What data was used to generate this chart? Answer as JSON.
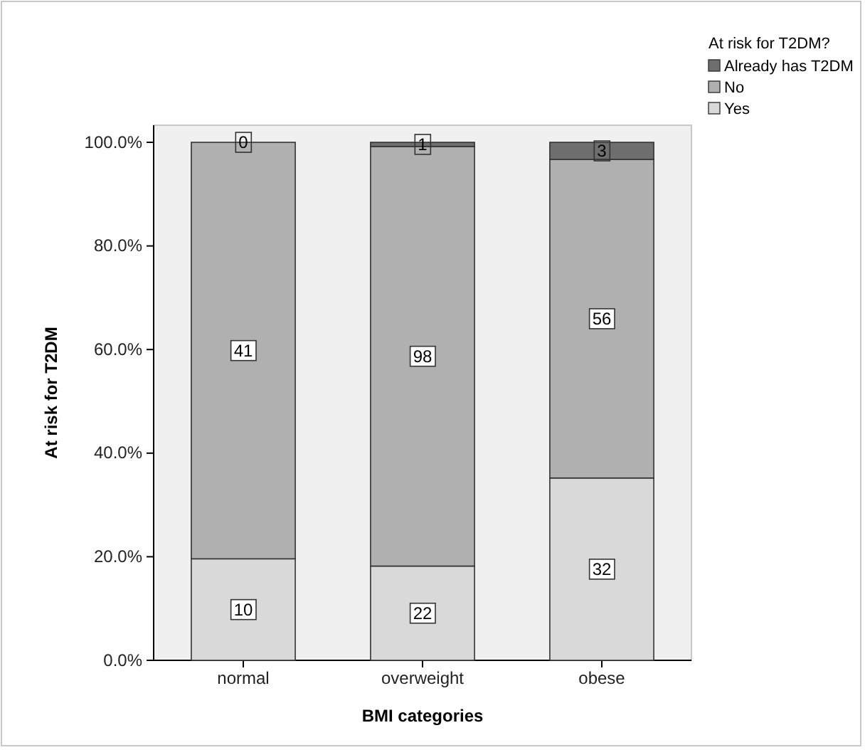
{
  "chart_data": {
    "type": "bar",
    "stacked": true,
    "xlabel": "BMI categories",
    "ylabel": "At risk for T2DM",
    "legend_title": "At risk for T2DM?",
    "legend": "top right",
    "categories": [
      "normal",
      "overweight",
      "obese"
    ],
    "series": [
      {
        "name": "Yes",
        "color": "#d9d9d9",
        "values": [
          19.6,
          18.2,
          35.2
        ]
      },
      {
        "name": "No",
        "color": "#b0b0b0",
        "values": [
          80.4,
          81.0,
          61.5
        ]
      },
      {
        "name": "Already has T2DM",
        "color": "#6e6e6e",
        "values": [
          0,
          0.8,
          3.3
        ]
      }
    ],
    "annotations": [
      {
        "text": "10",
        "x": "normal",
        "y": 9.8
      },
      {
        "text": "41",
        "x": "normal",
        "y": 59.8
      },
      {
        "text": "0",
        "x": "normal",
        "y": 100
      },
      {
        "text": "22",
        "x": "overweight",
        "y": 9.1
      },
      {
        "text": "98",
        "x": "overweight",
        "y": 58.7
      },
      {
        "text": "1",
        "x": "overweight",
        "y": 99.6
      },
      {
        "text": "32",
        "x": "obese",
        "y": 17.6
      },
      {
        "text": "56",
        "x": "obese",
        "y": 65.95
      },
      {
        "text": "3",
        "x": "obese",
        "y": 98.35
      }
    ],
    "ylim": [
      0,
      103.3
    ],
    "yticks": [
      {
        "value": 0,
        "label": "0.0%"
      },
      {
        "value": 20,
        "label": "20.0%"
      },
      {
        "value": 40,
        "label": "40.0%"
      },
      {
        "value": 60,
        "label": "60.0%"
      },
      {
        "value": 80,
        "label": "80.0%"
      },
      {
        "value": 100,
        "label": "100.0%"
      }
    ]
  }
}
